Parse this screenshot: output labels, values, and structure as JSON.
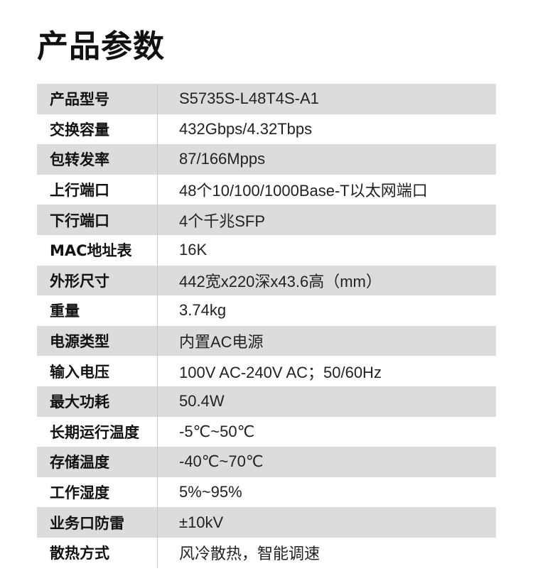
{
  "title": "产品参数",
  "specs": [
    {
      "label": "产品型号",
      "value": "S5735S-L48T4S-A1"
    },
    {
      "label": "交换容量",
      "value": "432Gbps/4.32Tbps"
    },
    {
      "label": "包转发率",
      "value": "87/166Mpps"
    },
    {
      "label": "上行端口",
      "value": "48个10/100/1000Base-T以太网端口"
    },
    {
      "label": "下行端口",
      "value": "4个千兆SFP"
    },
    {
      "label": "MAC地址表",
      "value": "16K"
    },
    {
      "label": "外形尺寸",
      "value": "442宽x220深x43.6高（mm）"
    },
    {
      "label": "重量",
      "value": "3.74kg"
    },
    {
      "label": "电源类型",
      "value": "内置AC电源"
    },
    {
      "label": "输入电压",
      "value": "100V AC-240V AC；50/60Hz"
    },
    {
      "label": "最大功耗",
      "value": "50.4W"
    },
    {
      "label": "长期运行温度",
      "value": "-5℃~50℃"
    },
    {
      "label": "存储温度",
      "value": "-40℃~70℃"
    },
    {
      "label": "工作湿度",
      "value": "5%~95%"
    },
    {
      "label": "业务口防雷",
      "value": "±10kV"
    },
    {
      "label": "散热方式",
      "value": "风冷散热，智能调速"
    }
  ]
}
